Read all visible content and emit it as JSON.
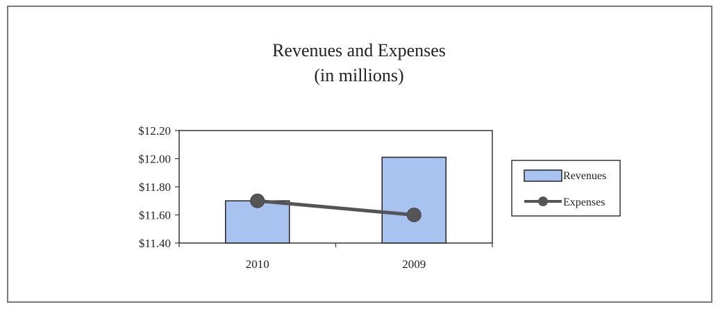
{
  "chart_data": {
    "type": "bar",
    "title": "Revenues and Expenses",
    "subtitle": "(in millions)",
    "categories": [
      "2010",
      "2009"
    ],
    "series": [
      {
        "name": "Revenues",
        "type": "bar",
        "values": [
          11.7,
          12.01
        ],
        "color": "#a9c3f0"
      },
      {
        "name": "Expenses",
        "type": "line",
        "values": [
          11.7,
          11.6
        ],
        "color": "#555555"
      }
    ],
    "ylim": [
      11.4,
      12.2
    ],
    "yticks": [
      12.2,
      12.0,
      11.8,
      11.6,
      11.4
    ],
    "ytick_labels": [
      "$12.20",
      "$12.00",
      "$11.80",
      "$11.60",
      "$11.40"
    ],
    "legend_position": "right",
    "grid": false
  }
}
